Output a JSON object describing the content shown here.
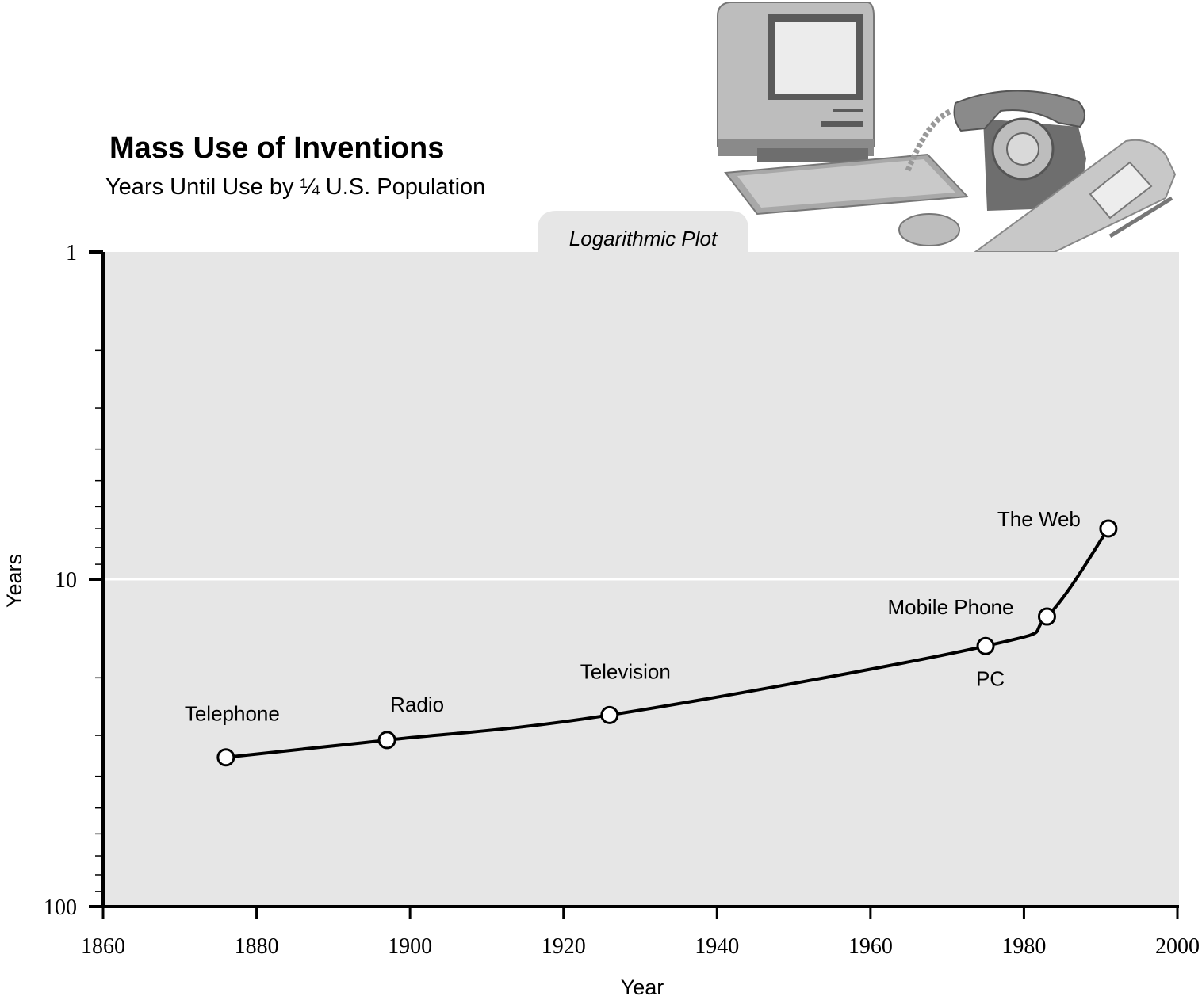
{
  "header": {
    "title": "Mass Use of Inventions",
    "subtitle": "Years Until Use by ¼ U.S. Population"
  },
  "plot_tab_label": "Logarithmic Plot",
  "illustration": {
    "items": [
      "computer-icon",
      "rotary-telephone-icon",
      "mobile-phone-icon"
    ]
  },
  "colors": {
    "plot_background": "#e6e6e6",
    "line": "#000000",
    "marker_fill": "#ffffff"
  },
  "chart_data": {
    "type": "line",
    "title": "Mass Use of Inventions",
    "subtitle": "Years Until Use by ¼ U.S. Population",
    "xlabel": "Year",
    "ylabel": "Years",
    "xlim": [
      1860,
      2000
    ],
    "ylim": [
      100,
      1
    ],
    "y_scale": "log",
    "y_inverted": true,
    "x_ticks": [
      1860,
      1880,
      1900,
      1920,
      1940,
      1960,
      1980,
      2000
    ],
    "y_ticks": [
      1,
      10,
      100
    ],
    "y_tick_labels": [
      "1",
      "10",
      "100"
    ],
    "grid": "horizontal line at 10",
    "points": [
      {
        "label": "Telephone",
        "x": 1876,
        "y": 35
      },
      {
        "label": "Radio",
        "x": 1897,
        "y": 31
      },
      {
        "label": "Television",
        "x": 1926,
        "y": 26
      },
      {
        "label": "PC",
        "x": 1975,
        "y": 16
      },
      {
        "label": "Mobile Phone",
        "x": 1983,
        "y": 13
      },
      {
        "label": "The Web",
        "x": 1991,
        "y": 7
      }
    ]
  }
}
